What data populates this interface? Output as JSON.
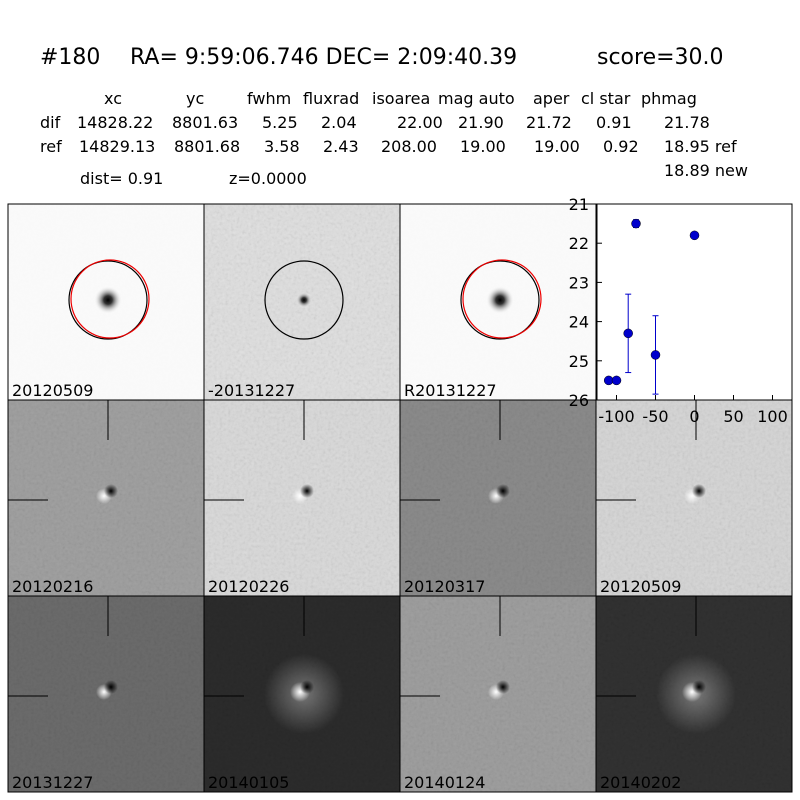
{
  "header": {
    "id": "#180",
    "coords": "RA= 9:59:06.746 DEC= 2:09:40.39",
    "score": "score=30.0"
  },
  "table": {
    "columns": [
      "xc",
      "yc",
      "fwhm",
      "fluxrad",
      "isoarea",
      "mag auto",
      "aper",
      "cl star",
      "phmag"
    ],
    "rows": [
      [
        "dif",
        "14828.22",
        "8801.63",
        "5.25",
        "2.04",
        "22.00",
        "21.90",
        "21.72",
        "0.91",
        "21.78"
      ],
      [
        "ref",
        "14829.13",
        "8801.68",
        "3.58",
        "2.43",
        "208.00",
        "19.00",
        "19.00",
        "0.92",
        "18.95 ref"
      ]
    ],
    "extra": "18.89 new"
  },
  "dist": "dist=  0.91",
  "z": "z=0.0000",
  "panels": [
    {
      "label": "20120509"
    },
    {
      "label": "-20131227"
    },
    {
      "label": "R20131227"
    },
    {
      "label": "20120216"
    },
    {
      "label": "20120226"
    },
    {
      "label": "20120317"
    },
    {
      "label": "20120509",
      "color": "#ff0000"
    },
    {
      "label": "20131227"
    },
    {
      "label": "20140105"
    },
    {
      "label": "20140124"
    },
    {
      "label": "20140202"
    }
  ],
  "chart_data": {
    "type": "errorbar",
    "x": [
      -110,
      -100,
      -85,
      -75,
      -50,
      0
    ],
    "values": [
      25.5,
      25.5,
      24.3,
      21.5,
      24.85,
      21.8
    ],
    "errors": [
      0,
      0,
      1.0,
      0.1,
      1.0,
      0.07
    ],
    "color": "#0000cc",
    "xlim": [
      -125,
      125
    ],
    "ylim": [
      26,
      21
    ],
    "xticks": [
      -100,
      -50,
      0,
      50,
      100
    ],
    "yticks": [
      21,
      22,
      23,
      24,
      25,
      26
    ]
  }
}
